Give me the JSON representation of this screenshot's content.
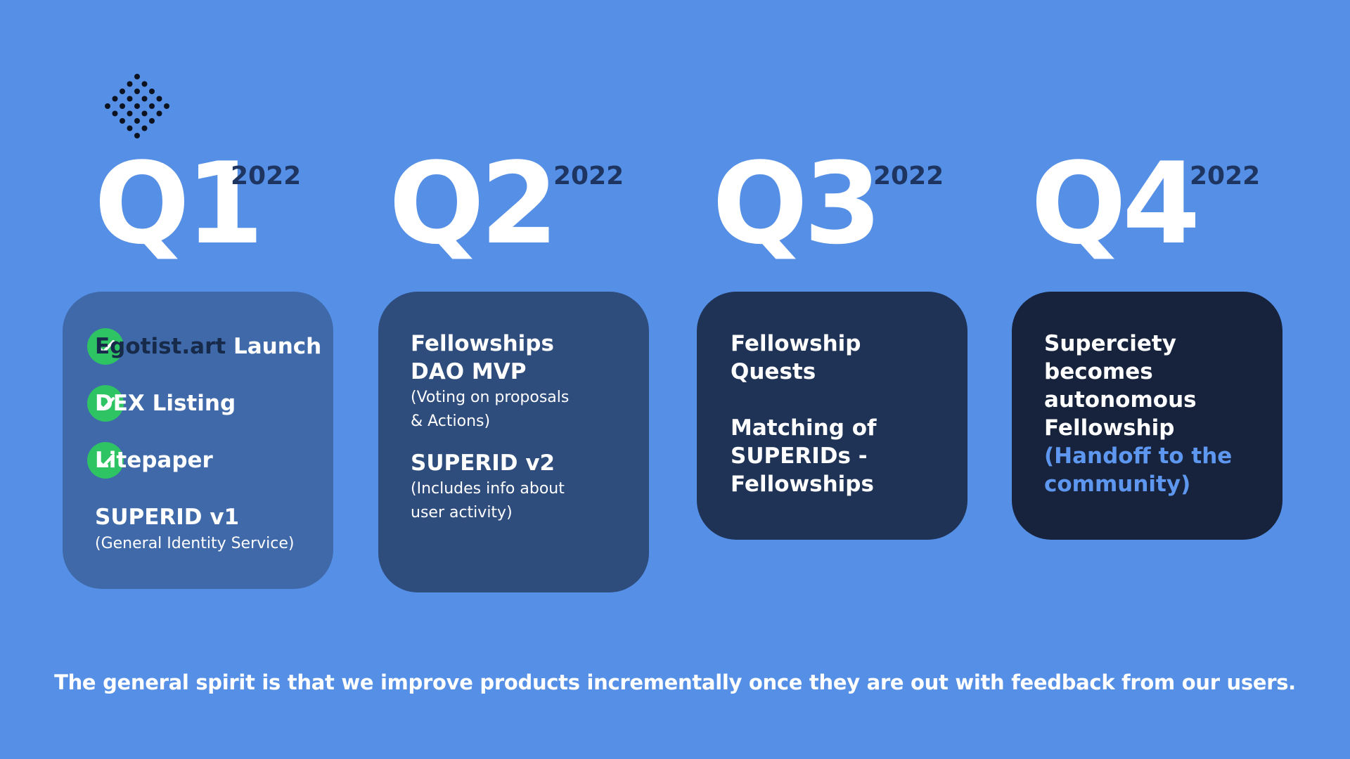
{
  "quarters": [
    {
      "label": "Q1",
      "year": "2022"
    },
    {
      "label": "Q2",
      "year": "2022"
    },
    {
      "label": "Q3",
      "year": "2022"
    },
    {
      "label": "Q4",
      "year": "2022"
    }
  ],
  "q1": {
    "item1_brand": "Egotist.art",
    "item1_rest": " Launch",
    "item2": "DEX Listing",
    "item3": "Litepaper",
    "item4_title": "SUPERID v1",
    "item4_sub": "(General Identity Service)"
  },
  "q2": {
    "title_line1": "Fellowships",
    "title_line2": "DAO MVP",
    "sub1_line1": "(Voting on proposals",
    "sub1_line2": "& Actions)",
    "title2": "SUPERID v2",
    "sub2_line1": "(Includes info about",
    "sub2_line2": "user activity)"
  },
  "q3": {
    "line1": "Fellowship",
    "line2": "Quests",
    "line3": "Matching of",
    "line4": "SUPERIDs -",
    "line5": "Fellowships"
  },
  "q4": {
    "line1": "Superciety",
    "line2": "becomes",
    "line3": "autonomous",
    "line4": "Fellowship",
    "line5": "(Handoff to the",
    "line6": "community)"
  },
  "footer": "The general spirit is that we improve products incrementally once they are out with feedback from our users.",
  "colors": {
    "background": "#558fe6",
    "card1": "#3f69a9",
    "card2": "#2e4c7c",
    "card3": "#1f3356",
    "card4": "#17233c",
    "check": "#2fc463",
    "accent": "#5e97ef",
    "year": "#1e3562"
  },
  "icons": [
    "dotted-diamond-logo",
    "check-icon"
  ]
}
